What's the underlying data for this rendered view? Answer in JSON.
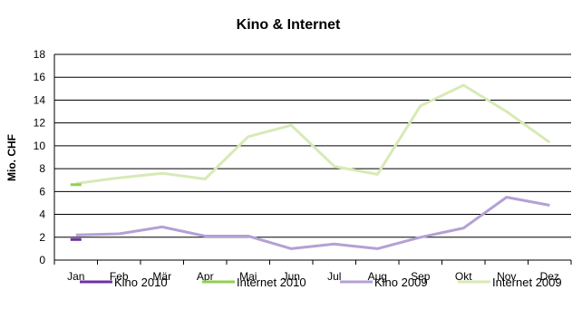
{
  "chart_data": {
    "type": "line",
    "title": "Kino & Internet",
    "xlabel": "",
    "ylabel": "Mio. CHF",
    "ylim": [
      0,
      18
    ],
    "yticks": [
      0,
      2,
      4,
      6,
      8,
      10,
      12,
      14,
      16,
      18
    ],
    "grid": "horizontal",
    "legend_position": "bottom",
    "categories": [
      "Jan",
      "Feb",
      "Mär",
      "Apr",
      "Mai",
      "Jun",
      "Jul",
      "Aug",
      "Sep",
      "Okt",
      "Nov",
      "Dez"
    ],
    "series": [
      {
        "name": "Kino 2010",
        "color": "#7030a0",
        "values": [
          1.8,
          null,
          null,
          null,
          null,
          null,
          null,
          null,
          null,
          null,
          null,
          null
        ]
      },
      {
        "name": "Internet 2010",
        "color": "#92d050",
        "values": [
          6.6,
          null,
          null,
          null,
          null,
          null,
          null,
          null,
          null,
          null,
          null,
          null
        ]
      },
      {
        "name": "Kino 2009",
        "color": "#b4a0d4",
        "values": [
          2.2,
          2.3,
          2.9,
          2.1,
          2.1,
          1.0,
          1.4,
          1.0,
          2.0,
          2.8,
          5.5,
          4.8
        ]
      },
      {
        "name": "Internet 2009",
        "color": "#d7eab6",
        "values": [
          6.7,
          7.2,
          7.6,
          7.1,
          10.8,
          11.8,
          8.2,
          7.5,
          13.5,
          15.3,
          13.0,
          10.3
        ]
      }
    ]
  }
}
